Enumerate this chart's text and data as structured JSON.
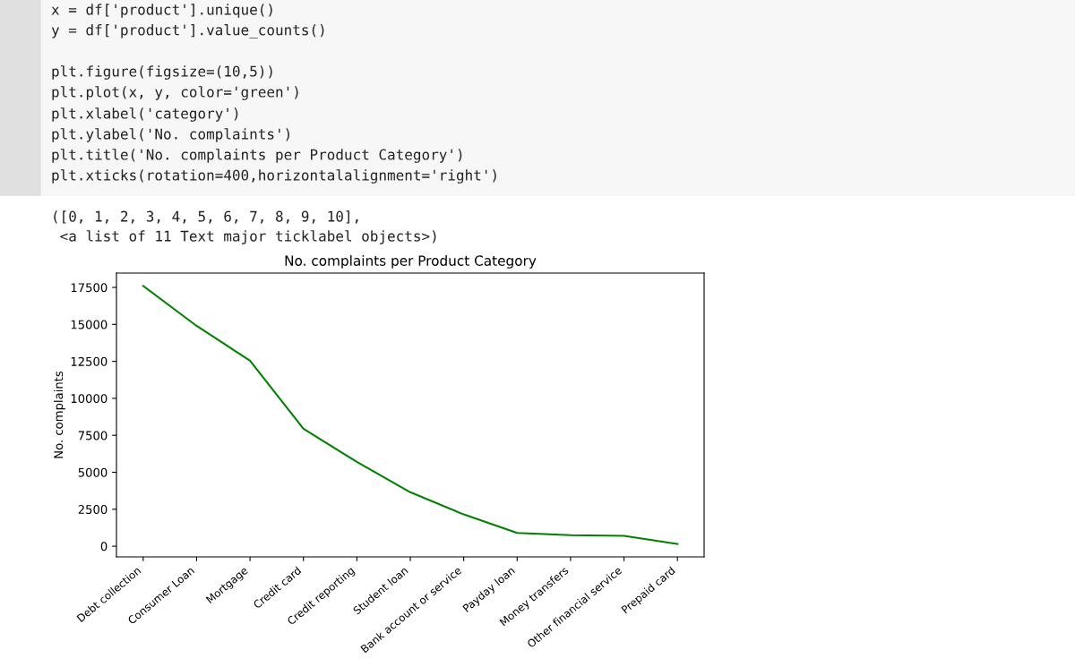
{
  "chart_data": {
    "type": "line",
    "title": "No. complaints per Product Category",
    "ylabel": "No. complaints",
    "categories": [
      "Debt collection",
      "Consumer Loan",
      "Mortgage",
      "Credit card",
      "Credit reporting",
      "Student loan",
      "Bank account or service",
      "Payday loan",
      "Money transfers",
      "Other financial service",
      "Prepaid card"
    ],
    "series": [
      {
        "color": "#008000",
        "values": [
          17600,
          14900,
          12550,
          7950,
          5700,
          3650,
          2150,
          900,
          750,
          700,
          150
        ]
      }
    ],
    "ylim": [
      -720,
      18470
    ],
    "yticks": [
      0,
      2500,
      5000,
      7500,
      10000,
      12500,
      15000,
      17500
    ],
    "grid": false,
    "legend": false,
    "marker": "none",
    "line_style": "solid",
    "annotations": [
      "x = df['product'].unique()",
      "y = df['product'].value_counts()",
      "plt.figure(figsize=(10,5))",
      "plt.plot(x, y, color='green')",
      "plt.xlabel('category')",
      "plt.ylabel('No. complaints')",
      "plt.title('No. complaints per Product Category')",
      "plt.xticks(rotation=400,horizontalalignment='right')",
      "([0, 1, 2, 3, 4, 5, 6, 7, 8, 9, 10],",
      " <a list of 11 Text major ticklabel objects>)"
    ]
  }
}
